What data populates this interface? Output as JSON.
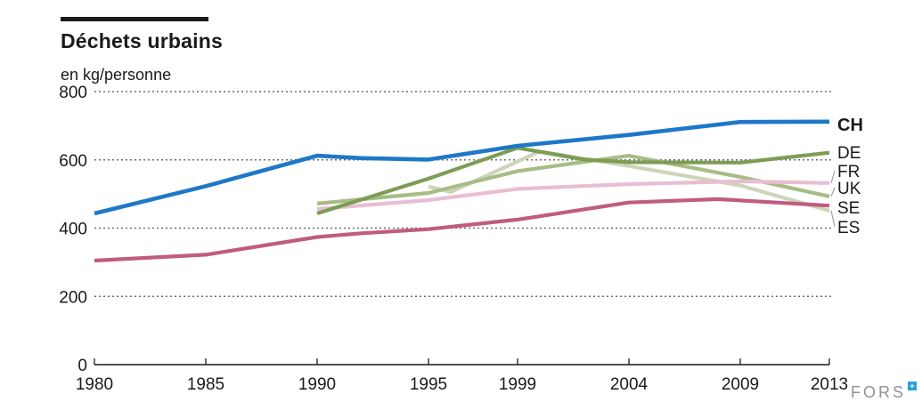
{
  "title": "Déchets urbains",
  "subtitle": "en kg/personne",
  "logo": {
    "text": "FORS",
    "mark": "+",
    "mark_color": "#2e9fd8",
    "text_color": "#8e9499"
  },
  "chart_data": {
    "type": "line",
    "title": "Déchets urbains",
    "ylabel": "en kg/personne",
    "unit": "kg/personne",
    "xlim": [
      1980,
      2013
    ],
    "ylim": [
      0,
      800
    ],
    "x_ticks": [
      1980,
      1985,
      1990,
      1995,
      1999,
      2004,
      2009,
      2013
    ],
    "y_ticks": [
      0,
      200,
      400,
      600,
      800
    ],
    "grid": "horizontal-dotted",
    "grid_color": "#6e6e6e",
    "axis_color": "#1a1a1a",
    "legend_position": "right",
    "series": [
      {
        "name": "ES",
        "color": "#cdd5b8",
        "bold": false,
        "label_y": 255,
        "points": [
          [
            1995,
            522
          ],
          [
            1996,
            506
          ],
          [
            2000,
            625
          ],
          [
            2004,
            582
          ],
          [
            2009,
            525
          ],
          [
            2013,
            451
          ]
        ]
      },
      {
        "name": "UK",
        "color": "#a6bd85",
        "bold": false,
        "label_y": 211,
        "points": [
          [
            1990,
            472
          ],
          [
            1995,
            503
          ],
          [
            1999,
            567
          ],
          [
            2004,
            612
          ],
          [
            2009,
            550
          ],
          [
            2013,
            493
          ]
        ]
      },
      {
        "name": "FR",
        "color": "#e9bed2",
        "bold": false,
        "label_y": 192,
        "points": [
          [
            1990,
            456
          ],
          [
            1995,
            482
          ],
          [
            1999,
            515
          ],
          [
            2004,
            529
          ],
          [
            2009,
            537
          ],
          [
            2013,
            532
          ]
        ]
      },
      {
        "name": "DE",
        "color": "#7d9c55",
        "bold": false,
        "label_y": 171,
        "points": [
          [
            1990,
            443
          ],
          [
            1995,
            545
          ],
          [
            1999,
            635
          ],
          [
            2002,
            601
          ],
          [
            2004,
            593
          ],
          [
            2009,
            592
          ],
          [
            2013,
            621
          ]
        ]
      },
      {
        "name": "SE",
        "color": "#c05c80",
        "bold": false,
        "label_y": 233,
        "points": [
          [
            1980,
            305
          ],
          [
            1985,
            322
          ],
          [
            1990,
            374
          ],
          [
            1992,
            385
          ],
          [
            1995,
            397
          ],
          [
            1999,
            425
          ],
          [
            2004,
            475
          ],
          [
            2008,
            485
          ],
          [
            2013,
            466
          ]
        ]
      },
      {
        "name": "CH",
        "color": "#1e78c8",
        "bold": true,
        "label_y": 140,
        "points": [
          [
            1980,
            443
          ],
          [
            1985,
            523
          ],
          [
            1990,
            612
          ],
          [
            1992,
            605
          ],
          [
            1995,
            601
          ],
          [
            1999,
            641
          ],
          [
            2004,
            673
          ],
          [
            2009,
            711
          ],
          [
            2013,
            712
          ]
        ]
      }
    ]
  }
}
